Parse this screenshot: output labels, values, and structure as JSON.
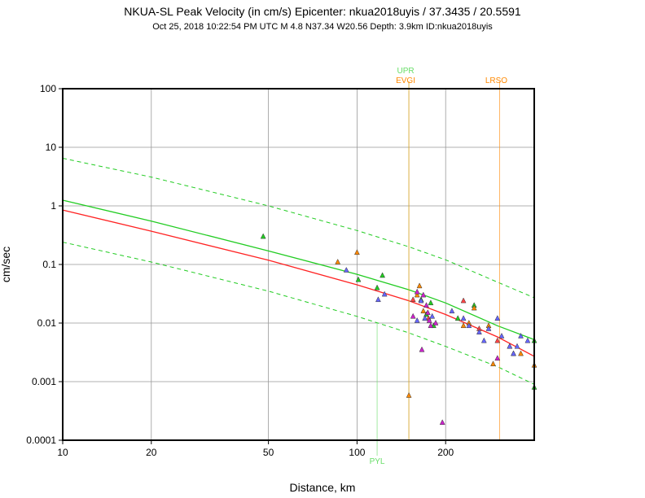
{
  "chart_data": {
    "type": "scatter",
    "title": "NKUA-SL Peak Velocity (in cm/s) Epicenter: nkua2018uyis / 37.3435 / 20.5591",
    "subtitle": "Oct 25, 2018 10:22:54 PM UTC   M 4.8   N37.34 W20.56   Depth: 3.9km   ID:nkua2018uyis",
    "xlabel": "Distance, km",
    "ylabel": "cm/sec",
    "xscale": "log",
    "yscale": "log",
    "xlim": [
      10,
      400
    ],
    "ylim": [
      0.0001,
      100
    ],
    "grid": true,
    "x_ticks": [
      {
        "value": 10,
        "label": "10"
      },
      {
        "value": 20,
        "label": "20"
      },
      {
        "value": 50,
        "label": "50"
      },
      {
        "value": 100,
        "label": "100"
      },
      {
        "value": 200,
        "label": "200"
      }
    ],
    "y_ticks": [
      {
        "value": 0.0001,
        "label": "0.0001"
      },
      {
        "value": 0.001,
        "label": "0.001"
      },
      {
        "value": 0.01,
        "label": "0.01"
      },
      {
        "value": 0.1,
        "label": "0.1"
      },
      {
        "value": 1,
        "label": "1"
      },
      {
        "value": 10,
        "label": "10"
      },
      {
        "value": 100,
        "label": "100"
      }
    ],
    "curves": [
      {
        "style": "solid",
        "color": "#22cc22",
        "points": [
          [
            10,
            1.25
          ],
          [
            20,
            0.55
          ],
          [
            50,
            0.17
          ],
          [
            100,
            0.068
          ],
          [
            150,
            0.037
          ],
          [
            200,
            0.022
          ],
          [
            300,
            0.009
          ],
          [
            400,
            0.0052
          ]
        ]
      },
      {
        "style": "solid",
        "color": "#ff2222",
        "points": [
          [
            10,
            0.85
          ],
          [
            20,
            0.37
          ],
          [
            50,
            0.118
          ],
          [
            100,
            0.045
          ],
          [
            150,
            0.024
          ],
          [
            200,
            0.014
          ],
          [
            300,
            0.0058
          ],
          [
            400,
            0.0027
          ]
        ]
      },
      {
        "style": "dashed",
        "color": "#22cc22",
        "points": [
          [
            10,
            6.5
          ],
          [
            20,
            3.1
          ],
          [
            50,
            1.0
          ],
          [
            100,
            0.38
          ],
          [
            150,
            0.2
          ],
          [
            200,
            0.12
          ],
          [
            300,
            0.05
          ],
          [
            400,
            0.027
          ]
        ]
      },
      {
        "style": "dashed",
        "color": "#22cc22",
        "points": [
          [
            10,
            0.24
          ],
          [
            20,
            0.11
          ],
          [
            50,
            0.035
          ],
          [
            100,
            0.013
          ],
          [
            150,
            0.0068
          ],
          [
            200,
            0.004
          ],
          [
            300,
            0.0018
          ],
          [
            400,
            0.0009
          ]
        ]
      }
    ],
    "vertical_markers": [
      {
        "x": 150,
        "label": "UPR",
        "color": "#66dd66",
        "label_position": "top",
        "label_row": 0
      },
      {
        "x": 150,
        "label": "EVGI",
        "color": "#ff8800",
        "label_position": "top",
        "label_row": 1
      },
      {
        "x": 305,
        "label": "LRSO",
        "color": "#ff8800",
        "label_position": "top",
        "label_row": 1
      },
      {
        "x": 117,
        "label": "PYL",
        "color": "#66dd66",
        "label_position": "bottom",
        "label_row": 0
      }
    ],
    "series": [
      {
        "color": "#22cc22",
        "points": [
          [
            48,
            0.3
          ],
          [
            101,
            0.055
          ],
          [
            117,
            0.04
          ],
          [
            122,
            0.065
          ],
          [
            165,
            0.025
          ],
          [
            172,
            0.014
          ],
          [
            178,
            0.022
          ],
          [
            182,
            0.009
          ],
          [
            220,
            0.012
          ],
          [
            250,
            0.02
          ],
          [
            400,
            0.005
          ],
          [
            400,
            0.0008
          ]
        ]
      },
      {
        "color": "#ff8800",
        "points": [
          [
            86,
            0.11
          ],
          [
            100,
            0.16
          ],
          [
            150,
            0.00058
          ],
          [
            160,
            0.03
          ],
          [
            163,
            0.043
          ],
          [
            168,
            0.016
          ],
          [
            230,
            0.009
          ],
          [
            240,
            0.01
          ],
          [
            250,
            0.018
          ],
          [
            280,
            0.009
          ],
          [
            290,
            0.002
          ],
          [
            330,
            0.004
          ],
          [
            340,
            0.003
          ],
          [
            360,
            0.003
          ],
          [
            400,
            0.0019
          ]
        ]
      },
      {
        "color": "#ff4444",
        "points": [
          [
            155,
            0.025
          ],
          [
            175,
            0.012
          ],
          [
            230,
            0.024
          ],
          [
            260,
            0.008
          ],
          [
            300,
            0.005
          ]
        ]
      },
      {
        "color": "#6666ff",
        "points": [
          [
            92,
            0.08
          ],
          [
            118,
            0.025
          ],
          [
            124,
            0.031
          ],
          [
            160,
            0.011
          ],
          [
            165,
            0.024
          ],
          [
            170,
            0.012
          ],
          [
            180,
            0.013
          ],
          [
            210,
            0.016
          ],
          [
            230,
            0.012
          ],
          [
            240,
            0.009
          ],
          [
            260,
            0.007
          ],
          [
            270,
            0.005
          ],
          [
            280,
            0.008
          ],
          [
            300,
            0.012
          ],
          [
            310,
            0.006
          ],
          [
            330,
            0.004
          ],
          [
            340,
            0.003
          ],
          [
            350,
            0.004
          ],
          [
            360,
            0.006
          ],
          [
            380,
            0.005
          ]
        ]
      },
      {
        "color": "#cc22cc",
        "points": [
          [
            155,
            0.013
          ],
          [
            160,
            0.034
          ],
          [
            166,
            0.0035
          ],
          [
            168,
            0.03
          ],
          [
            172,
            0.02
          ],
          [
            174,
            0.015
          ],
          [
            176,
            0.011
          ],
          [
            178,
            0.009
          ],
          [
            185,
            0.01
          ],
          [
            195,
            0.0002
          ],
          [
            300,
            0.0025
          ]
        ]
      }
    ]
  }
}
